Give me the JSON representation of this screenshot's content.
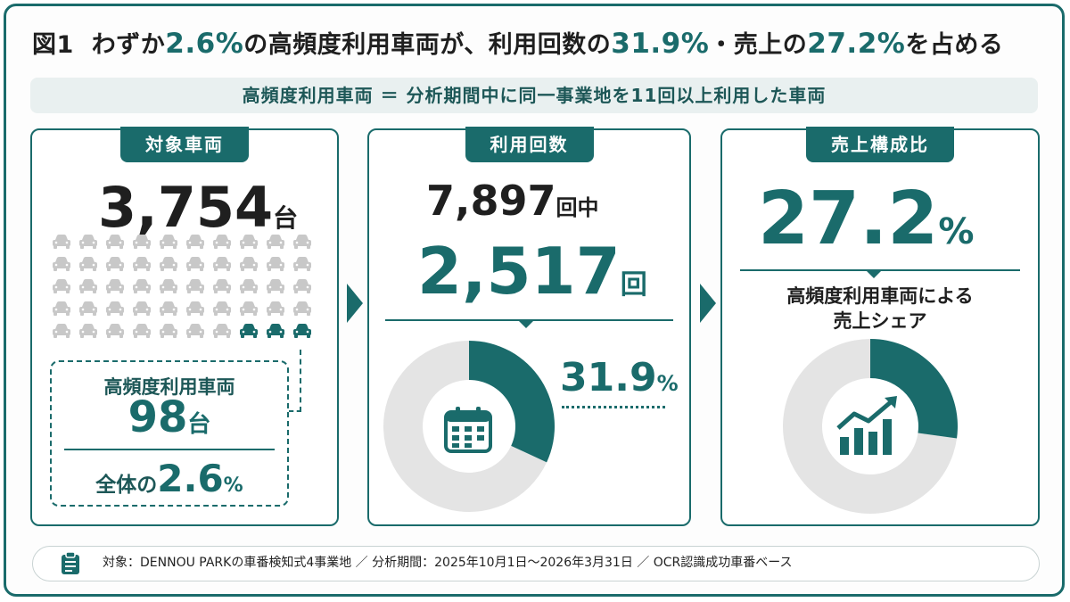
{
  "title": {
    "fig": "図1",
    "p1": "わずか",
    "n1": "2.6%",
    "p2": "の高頻度利用車両が、利用回数の",
    "n2": "31.9%",
    "p3": "・売上の",
    "n3": "27.2%",
    "p4": "を占める"
  },
  "definition": "高頻度利用車両 ＝ 分析期間中に同一事業地を11回以上利用した車両",
  "panel1": {
    "header": "対象車両",
    "value": "3,754",
    "unit": "台",
    "car_rows": 5,
    "car_cols": 10,
    "highlight_cars": 3,
    "hf_label": "高頻度利用車両",
    "hf_value": "98",
    "hf_unit": "台",
    "share_prefix": "全体の",
    "share_value": "2.6",
    "share_unit": "%"
  },
  "panel2": {
    "header": "利用回数",
    "total": "7,897",
    "total_unit": "回中",
    "value": "2,517",
    "unit": "回",
    "pct": "31.9",
    "pct_unit": "%",
    "icon": "calendar-icon"
  },
  "panel3": {
    "header": "売上構成比",
    "value": "27.2",
    "unit": "%",
    "caption_line1": "高頻度利用車両による",
    "caption_line2": "売上シェア",
    "icon": "growth-chart-icon"
  },
  "footer": {
    "icon": "clipboard-icon",
    "text": "対象：DENNOU PARKの車番検知式4事業地 ／ 分析期間：2025年10月1日～2026年3月31日 ／ OCR認識成功車番ベース"
  },
  "colors": {
    "accent": "#1a6b6b",
    "track": "#e4e4e4",
    "car_gray": "#c8c8c8"
  },
  "chart_data": [
    {
      "type": "pie",
      "categories": [
        "",
        ""
      ],
      "values": [
        31.9,
        68.1
      ],
      "unit": "%"
    },
    {
      "type": "pie",
      "categories": [
        "",
        ""
      ],
      "values": [
        27.2,
        72.8
      ],
      "unit": "%"
    }
  ]
}
